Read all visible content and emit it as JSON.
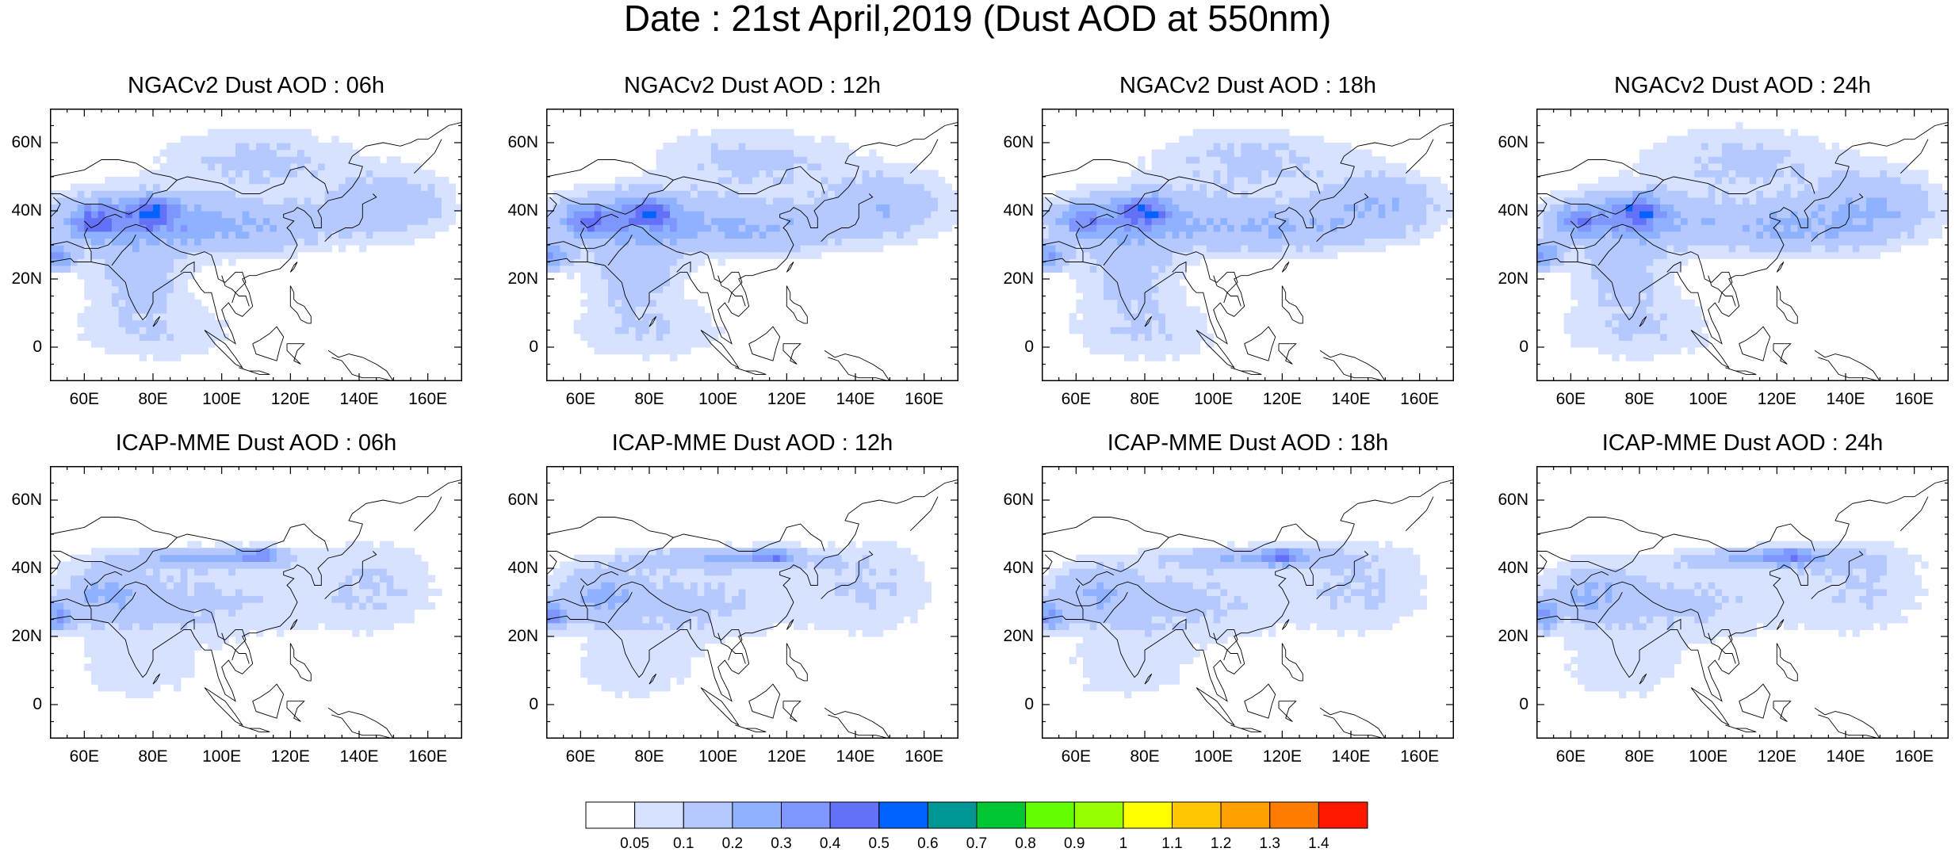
{
  "title": "Date : 21st April,2019 (Dust AOD at 550nm)",
  "axes": {
    "x_ticks": [
      "60E",
      "80E",
      "100E",
      "120E",
      "140E",
      "160E"
    ],
    "x_tick_values": [
      60,
      80,
      100,
      120,
      140,
      160
    ],
    "y_ticks": [
      "60N",
      "40N",
      "20N",
      "0"
    ],
    "y_tick_values": [
      60,
      40,
      20,
      0
    ],
    "lon_range": [
      50,
      170
    ],
    "lat_range": [
      -10,
      70
    ]
  },
  "panels": [
    {
      "title": "NGACv2 Dust AOD : 06h",
      "model": "NGACv2",
      "hour": "06h"
    },
    {
      "title": "NGACv2 Dust AOD : 12h",
      "model": "NGACv2",
      "hour": "12h"
    },
    {
      "title": "NGACv2 Dust AOD : 18h",
      "model": "NGACv2",
      "hour": "18h"
    },
    {
      "title": "NGACv2 Dust AOD : 24h",
      "model": "NGACv2",
      "hour": "24h"
    },
    {
      "title": "ICAP-MME Dust AOD : 06h",
      "model": "ICAP-MME",
      "hour": "06h"
    },
    {
      "title": "ICAP-MME Dust AOD : 12h",
      "model": "ICAP-MME",
      "hour": "12h"
    },
    {
      "title": "ICAP-MME Dust AOD : 18h",
      "model": "ICAP-MME",
      "hour": "18h"
    },
    {
      "title": "ICAP-MME Dust AOD : 24h",
      "model": "ICAP-MME",
      "hour": "24h"
    }
  ],
  "colorbar": {
    "labels": [
      "0.05",
      "0.1",
      "0.2",
      "0.3",
      "0.4",
      "0.5",
      "0.6",
      "0.7",
      "0.8",
      "0.9",
      "1",
      "1.1",
      "1.2",
      "1.3",
      "1.4"
    ],
    "colors": [
      "#ffffff",
      "#d6e2ff",
      "#b5c9ff",
      "#8eb2ff",
      "#7f96ff",
      "#6370f8",
      "#0063ff",
      "#009696",
      "#00c633",
      "#63ff00",
      "#96ff00",
      "#ffff00",
      "#ffc600",
      "#ffa000",
      "#ff7c00",
      "#ff1900"
    ]
  }
}
